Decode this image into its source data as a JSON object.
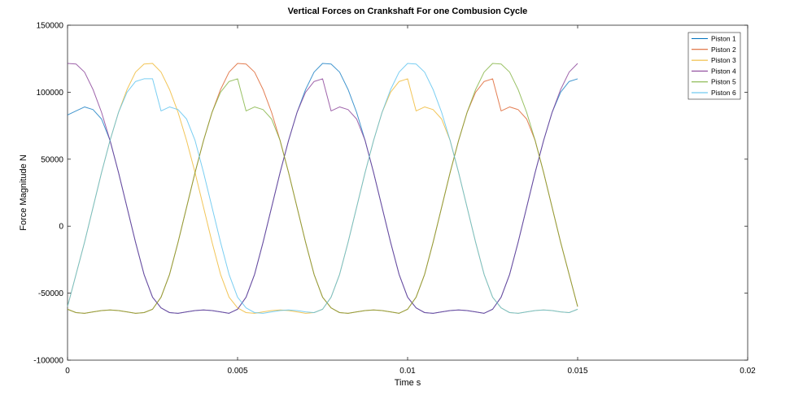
{
  "chart_data": {
    "type": "line",
    "title": "Vertical Forces on Crankshaft For one Combusion Cycle",
    "xlabel": "Time s",
    "ylabel": "Force Magnitude N",
    "xlim": [
      0,
      0.02
    ],
    "ylim": [
      -100000,
      150000
    ],
    "x_ticks": [
      0,
      0.005,
      0.01,
      0.015,
      0.02
    ],
    "x_tick_labels": [
      "0",
      "0.005",
      "0.01",
      "0.015",
      "0.02"
    ],
    "y_ticks": [
      -100000,
      -50000,
      0,
      50000,
      100000,
      150000
    ],
    "y_tick_labels": [
      "-100000",
      "-50000",
      "0",
      "50000",
      "100000",
      "150000"
    ],
    "grid": false,
    "legend_position": "top-right",
    "x": [
      0,
      0.00025,
      0.0005,
      0.00075,
      0.001,
      0.00125,
      0.0015,
      0.00175,
      0.002,
      0.00225,
      0.0025,
      0.00275,
      0.003,
      0.00325,
      0.0035,
      0.00375,
      0.004,
      0.00425,
      0.0045,
      0.00475,
      0.005,
      0.00525,
      0.0055,
      0.00575,
      0.006,
      0.00625,
      0.0065,
      0.00675,
      0.007,
      0.00725,
      0.0075,
      0.00775,
      0.008,
      0.00825,
      0.0085,
      0.00875,
      0.009,
      0.00925,
      0.0095,
      0.00975,
      0.01,
      0.01025,
      0.0105,
      0.01075,
      0.011,
      0.01125,
      0.0115,
      0.01175,
      0.012,
      0.01225,
      0.0125,
      0.01275,
      0.013,
      0.01325,
      0.0135,
      0.01375,
      0.014,
      0.01425,
      0.0145,
      0.01475,
      0.015
    ],
    "series": [
      {
        "name": "Piston 1",
        "color": "#0072bd",
        "values": [
          83000,
          86000,
          89000,
          87000,
          80000,
          64000,
          40000,
          14000,
          -12000,
          -36000,
          -53000,
          -61000,
          -64500,
          -65000,
          -64000,
          -63000,
          -62500,
          -63000,
          -64000,
          -65000,
          -62000,
          -53000,
          -36000,
          -12000,
          14000,
          40000,
          64000,
          85000,
          102000,
          115000,
          121500,
          121000,
          115000,
          102000,
          85000,
          64000,
          40000,
          14000,
          -12000,
          -36000,
          -53000,
          -61000,
          -64500,
          -65000,
          -64000,
          -63000,
          -62500,
          -63000,
          -64000,
          -65000,
          -62000,
          -53000,
          -36000,
          -12000,
          14000,
          40000,
          64000,
          85000,
          100000,
          108000,
          110000
        ]
      },
      {
        "name": "Piston 2",
        "color": "#d95319",
        "values": [
          -62000,
          -64500,
          -65000,
          -64000,
          -63000,
          -62500,
          -63000,
          -64000,
          -65000,
          -64500,
          -62000,
          -53000,
          -36000,
          -12000,
          14000,
          40000,
          64000,
          85000,
          102000,
          115000,
          121500,
          121000,
          115000,
          102000,
          85000,
          64000,
          40000,
          14000,
          -12000,
          -36000,
          -53000,
          -61000,
          -64500,
          -65000,
          -64000,
          -63000,
          -62500,
          -63000,
          -64000,
          -65000,
          -62000,
          -53000,
          -36000,
          -12000,
          14000,
          40000,
          64000,
          85000,
          100000,
          108000,
          110000,
          86000,
          89000,
          87000,
          80000,
          64000,
          40000,
          14000,
          -12000,
          -36000,
          -60000
        ]
      },
      {
        "name": "Piston 3",
        "color": "#edb120",
        "values": [
          -60000,
          -36000,
          -12000,
          14000,
          40000,
          64000,
          85000,
          102000,
          115000,
          121000,
          121500,
          115000,
          102000,
          85000,
          64000,
          40000,
          14000,
          -12000,
          -36000,
          -53000,
          -61000,
          -64500,
          -65000,
          -64000,
          -63000,
          -62500,
          -63000,
          -64000,
          -65000,
          -64500,
          -62000,
          -53000,
          -36000,
          -12000,
          14000,
          40000,
          64000,
          85000,
          100000,
          108000,
          110000,
          86000,
          89000,
          87000,
          80000,
          64000,
          40000,
          14000,
          -12000,
          -36000,
          -53000,
          -61000,
          -64500,
          -65000,
          -64000,
          -63000,
          -62500,
          -63000,
          -64000,
          -64500,
          -62000
        ]
      },
      {
        "name": "Piston 4",
        "color": "#7e2f8e",
        "values": [
          121500,
          121000,
          115000,
          102000,
          85000,
          64000,
          40000,
          14000,
          -12000,
          -36000,
          -53000,
          -61000,
          -64500,
          -65000,
          -64000,
          -63000,
          -62500,
          -63000,
          -64000,
          -65000,
          -62000,
          -53000,
          -36000,
          -12000,
          14000,
          40000,
          64000,
          85000,
          100000,
          108000,
          110000,
          86000,
          89000,
          87000,
          80000,
          64000,
          40000,
          14000,
          -12000,
          -36000,
          -53000,
          -61000,
          -64500,
          -65000,
          -64000,
          -63000,
          -62500,
          -63000,
          -64000,
          -65000,
          -62000,
          -53000,
          -36000,
          -12000,
          14000,
          40000,
          64000,
          85000,
          102000,
          115000,
          121500
        ]
      },
      {
        "name": "Piston 5",
        "color": "#77ac30",
        "values": [
          -62000,
          -64500,
          -65000,
          -64000,
          -63000,
          -62500,
          -63000,
          -64000,
          -65000,
          -64500,
          -62000,
          -53000,
          -36000,
          -12000,
          14000,
          40000,
          64000,
          85000,
          100000,
          108000,
          110000,
          86000,
          89000,
          87000,
          80000,
          64000,
          40000,
          14000,
          -12000,
          -36000,
          -53000,
          -61000,
          -64500,
          -65000,
          -64000,
          -63000,
          -62500,
          -63000,
          -64000,
          -65000,
          -62000,
          -53000,
          -36000,
          -12000,
          14000,
          40000,
          64000,
          85000,
          102000,
          115000,
          121500,
          121000,
          115000,
          102000,
          85000,
          64000,
          40000,
          14000,
          -12000,
          -36000,
          -60000
        ]
      },
      {
        "name": "Piston 6",
        "color": "#4dbeee",
        "values": [
          -60000,
          -36000,
          -12000,
          14000,
          40000,
          64000,
          85000,
          100000,
          108000,
          110000,
          110000,
          86000,
          89000,
          87000,
          80000,
          64000,
          40000,
          14000,
          -12000,
          -36000,
          -53000,
          -61000,
          -64500,
          -65000,
          -64000,
          -63000,
          -62500,
          -63000,
          -64000,
          -64500,
          -62000,
          -53000,
          -36000,
          -12000,
          14000,
          40000,
          64000,
          85000,
          102000,
          115000,
          121500,
          121000,
          115000,
          102000,
          85000,
          64000,
          40000,
          14000,
          -12000,
          -36000,
          -53000,
          -61000,
          -64500,
          -65000,
          -64000,
          -63000,
          -62500,
          -63000,
          -64000,
          -64500,
          -62000
        ]
      }
    ]
  }
}
